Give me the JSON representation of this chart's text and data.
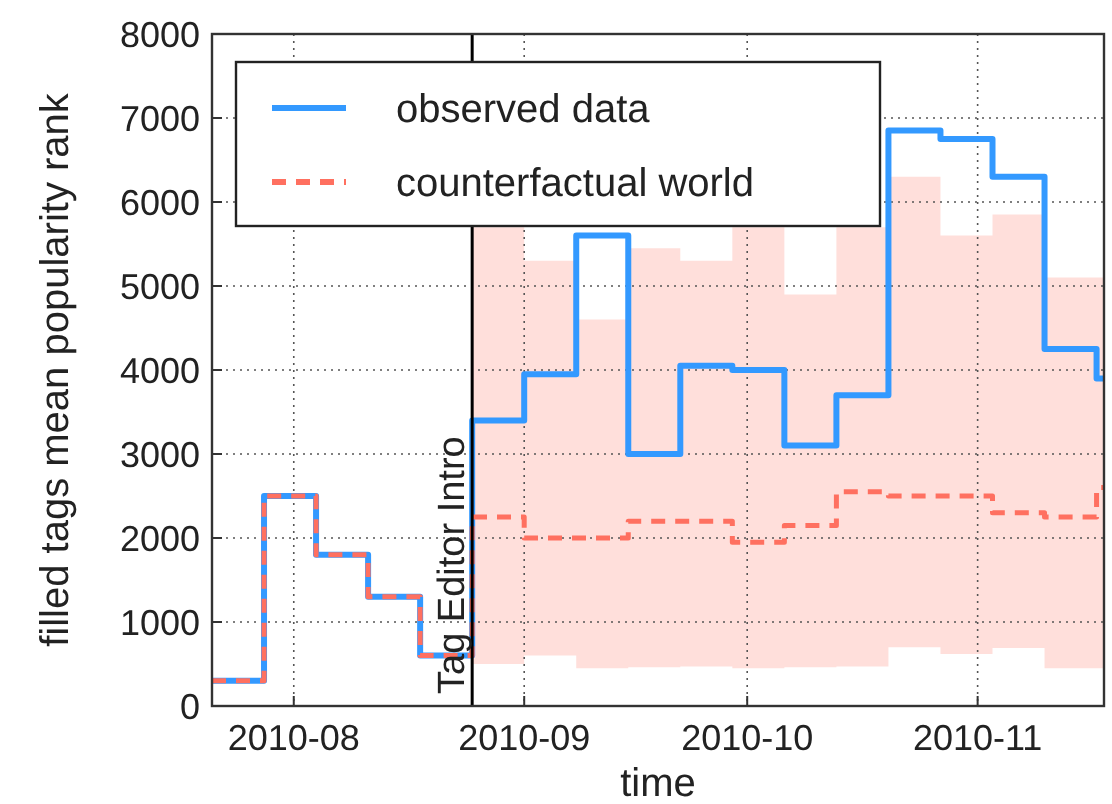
{
  "chart_data": {
    "type": "step",
    "xlabel": "time",
    "ylabel": "filled tags mean popularity rank",
    "x": [
      "2010-07-21",
      "2010-07-28",
      "2010-08-04",
      "2010-08-11",
      "2010-08-18",
      "2010-08-25",
      "2010-09-01",
      "2010-09-08",
      "2010-09-15",
      "2010-09-22",
      "2010-09-29",
      "2010-10-06",
      "2010-10-13",
      "2010-10-20",
      "2010-10-27",
      "2010-11-03",
      "2010-11-10",
      "2010-11-17",
      "2010-11-18"
    ],
    "series": [
      {
        "name": "observed data",
        "color": "#3399ff",
        "line_style": "solid",
        "values": [
          300,
          2500,
          1800,
          1300,
          600,
          3400,
          3950,
          5600,
          3000,
          4050,
          4000,
          3100,
          3700,
          6850,
          6750,
          6300,
          4250,
          3900,
          3900
        ]
      },
      {
        "name": "counterfactual world",
        "color": "#ff7060",
        "line_style": "dashed",
        "values": [
          300,
          2500,
          1800,
          1300,
          600,
          2250,
          2000,
          2000,
          2200,
          2200,
          1950,
          2150,
          2550,
          2500,
          2500,
          2300,
          2250,
          2600,
          2600
        ],
        "lower": [
          null,
          null,
          null,
          null,
          null,
          500,
          600,
          450,
          460,
          470,
          450,
          460,
          470,
          700,
          620,
          690,
          450,
          450,
          450
        ],
        "upper": [
          null,
          null,
          null,
          null,
          null,
          5700,
          5300,
          4600,
          5450,
          5300,
          5700,
          4900,
          5700,
          6300,
          5600,
          5850,
          5100,
          5100,
          5100
        ]
      }
    ],
    "xlim": [
      "2010-07-21",
      "2010-11-18"
    ],
    "xticks": [
      {
        "value": "2010-08-01",
        "label": "2010-08"
      },
      {
        "value": "2010-09-01",
        "label": "2010-09"
      },
      {
        "value": "2010-10-01",
        "label": "2010-10"
      },
      {
        "value": "2010-11-01",
        "label": "2010-11"
      }
    ],
    "ylim": [
      0,
      8000
    ],
    "yticks": [
      0,
      1000,
      2000,
      3000,
      4000,
      5000,
      6000,
      7000,
      8000
    ],
    "ref_lines": [
      {
        "axis": "x",
        "value": "2010-08-25",
        "label": "Tag Editor Intro",
        "color": "#000000"
      }
    ],
    "grid": true,
    "legend": "top left"
  }
}
